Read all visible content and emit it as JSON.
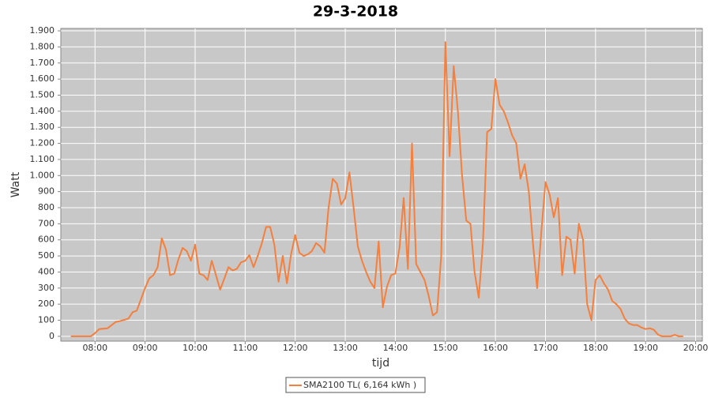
{
  "chart_data": {
    "type": "line",
    "title": "29-3-2018",
    "x_label": "tijd",
    "y_label": "Watt",
    "x": [
      "07:31",
      "07:55",
      "08:00",
      "08:05",
      "08:15",
      "08:25",
      "08:30",
      "08:40",
      "08:45",
      "08:50",
      "08:55",
      "09:00",
      "09:05",
      "09:10",
      "09:15",
      "09:20",
      "09:25",
      "09:30",
      "09:35",
      "09:40",
      "09:45",
      "09:50",
      "09:55",
      "10:00",
      "10:05",
      "10:10",
      "10:15",
      "10:20",
      "10:25",
      "10:30",
      "10:35",
      "10:40",
      "10:45",
      "10:50",
      "10:55",
      "11:00",
      "11:05",
      "11:10",
      "11:15",
      "11:20",
      "11:25",
      "11:30",
      "11:35",
      "11:40",
      "11:45",
      "11:50",
      "11:55",
      "12:00",
      "12:05",
      "12:10",
      "12:15",
      "12:20",
      "12:25",
      "12:30",
      "12:35",
      "12:40",
      "12:45",
      "12:50",
      "12:55",
      "13:00",
      "13:05",
      "13:10",
      "13:15",
      "13:20",
      "13:25",
      "13:30",
      "13:35",
      "13:40",
      "13:45",
      "13:50",
      "13:55",
      "14:00",
      "14:05",
      "14:10",
      "14:15",
      "14:20",
      "14:25",
      "14:30",
      "14:35",
      "14:40",
      "14:45",
      "14:50",
      "14:55",
      "15:00",
      "15:05",
      "15:10",
      "15:15",
      "15:20",
      "15:25",
      "15:30",
      "15:35",
      "15:40",
      "15:45",
      "15:50",
      "15:55",
      "16:00",
      "16:05",
      "16:10",
      "16:15",
      "16:20",
      "16:25",
      "16:30",
      "16:35",
      "16:40",
      "16:45",
      "16:50",
      "16:55",
      "17:00",
      "17:05",
      "17:10",
      "17:15",
      "17:20",
      "17:25",
      "17:30",
      "17:35",
      "17:40",
      "17:45",
      "17:50",
      "17:55",
      "18:00",
      "18:05",
      "18:10",
      "18:15",
      "18:20",
      "18:25",
      "18:30",
      "18:35",
      "18:40",
      "18:45",
      "18:50",
      "18:55",
      "19:00",
      "19:05",
      "19:10",
      "19:15",
      "19:20",
      "19:25",
      "19:30",
      "19:35",
      "19:40",
      "19:45"
    ],
    "series": [
      {
        "name": "SMA2100 TL( 6,164 kWh )",
        "color": "#f57f3c",
        "values": [
          0,
          0,
          20,
          45,
          50,
          90,
          95,
          110,
          150,
          160,
          230,
          300,
          360,
          380,
          430,
          610,
          540,
          380,
          390,
          480,
          550,
          530,
          470,
          570,
          390,
          380,
          350,
          470,
          380,
          290,
          360,
          430,
          410,
          420,
          460,
          470,
          505,
          430,
          500,
          580,
          680,
          680,
          570,
          340,
          500,
          330,
          510,
          630,
          520,
          500,
          510,
          530,
          580,
          560,
          520,
          800,
          980,
          950,
          820,
          860,
          1020,
          800,
          560,
          470,
          400,
          340,
          300,
          590,
          180,
          310,
          380,
          390,
          550,
          860,
          420,
          1200,
          450,
          400,
          350,
          250,
          130,
          150,
          500,
          1830,
          1120,
          1680,
          1400,
          1000,
          720,
          700,
          400,
          240,
          580,
          1270,
          1290,
          1600,
          1440,
          1400,
          1330,
          1250,
          1200,
          980,
          1070,
          900,
          580,
          300,
          650,
          960,
          880,
          740,
          860,
          380,
          620,
          600,
          390,
          700,
          600,
          200,
          100,
          350,
          380,
          330,
          290,
          220,
          200,
          170,
          110,
          80,
          70,
          70,
          55,
          45,
          50,
          40,
          10,
          0,
          0,
          0,
          10,
          0,
          0
        ]
      }
    ],
    "xlim": [
      "07:19",
      "20:08"
    ],
    "xticks": [
      "08:00",
      "09:00",
      "10:00",
      "11:00",
      "12:00",
      "13:00",
      "14:00",
      "15:00",
      "16:00",
      "17:00",
      "18:00",
      "19:00",
      "20:00"
    ],
    "ylim": [
      -30,
      1915
    ],
    "yticks": [
      0,
      100,
      200,
      300,
      400,
      500,
      600,
      700,
      800,
      900,
      {
        "value": 1000,
        "label": "1.000"
      },
      {
        "value": 1100,
        "label": "1.100"
      },
      {
        "value": 1200,
        "label": "1.200"
      },
      {
        "value": 1300,
        "label": "1.300"
      },
      {
        "value": 1400,
        "label": "1.400"
      },
      {
        "value": 1500,
        "label": "1.500"
      },
      {
        "value": 1600,
        "label": "1.600"
      },
      {
        "value": 1700,
        "label": "1.700"
      },
      {
        "value": 1800,
        "label": "1.800"
      },
      {
        "value": 1900,
        "label": "1.900"
      }
    ],
    "grid": true,
    "legend": "bottom"
  }
}
